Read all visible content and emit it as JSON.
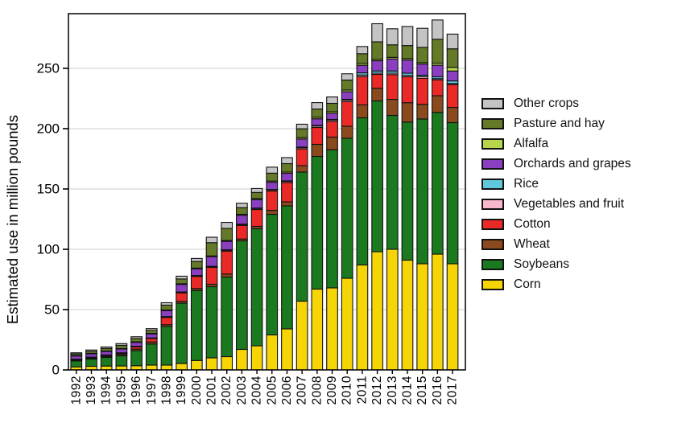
{
  "chart_data": {
    "type": "bar",
    "stacked": true,
    "title": "",
    "xlabel": "",
    "ylabel": "Estimated use in million pounds",
    "ylim": [
      0,
      295
    ],
    "yticks": [
      0,
      50,
      100,
      150,
      200,
      250
    ],
    "grid": true,
    "grid_color": "#d7d7d7",
    "legend_position": "right",
    "legend_order_top_to_bottom": [
      "Other crops",
      "Pasture and hay",
      "Alfalfa",
      "Orchards and grapes",
      "Rice",
      "Vegetables and fruit",
      "Cotton",
      "Wheat",
      "Soybeans",
      "Corn"
    ],
    "categories": [
      "1992",
      "1993",
      "1994",
      "1995",
      "1996",
      "1997",
      "1998",
      "1999",
      "2000",
      "2001",
      "2002",
      "2003",
      "2004",
      "2005",
      "2006",
      "2007",
      "2008",
      "2009",
      "2010",
      "2011",
      "2012",
      "2013",
      "2014",
      "2015",
      "2016",
      "2017"
    ],
    "series": [
      {
        "name": "Corn",
        "color": "#f5d506",
        "values": [
          2.5,
          3,
          3.2,
          3.3,
          3.5,
          4,
          4,
          5.3,
          7.8,
          10,
          11,
          17,
          20,
          29,
          34,
          57,
          67,
          68,
          76,
          87,
          98,
          100,
          91,
          88,
          96,
          88
        ]
      },
      {
        "name": "Soybeans",
        "color": "#1b7a1f",
        "values": [
          5,
          6,
          7.2,
          8.5,
          12.5,
          17.5,
          32,
          50,
          58,
          59,
          66,
          90,
          97,
          100,
          102,
          107,
          110,
          114.5,
          116,
          122,
          125,
          111,
          114.5,
          120,
          117.5,
          117
        ]
      },
      {
        "name": "Wheat",
        "color": "#8a4a1e",
        "values": [
          0.6,
          0.7,
          0.8,
          1,
          1.3,
          1.7,
          1.5,
          1.6,
          1.7,
          2,
          2.5,
          1.5,
          2,
          3.3,
          3.3,
          5.3,
          10,
          10.5,
          10,
          10.7,
          10.5,
          13.3,
          16,
          12.2,
          13.8,
          12.6
        ]
      },
      {
        "name": "Cotton",
        "color": "#eb2a27",
        "values": [
          0.5,
          0.6,
          0.8,
          1,
          1.8,
          2.8,
          6,
          7,
          10,
          14,
          19,
          11.3,
          14,
          16,
          16,
          14,
          14,
          13,
          20.5,
          23.5,
          11.5,
          20.5,
          21.5,
          21.5,
          13.2,
          19
        ]
      },
      {
        "name": "Vegetables and fruit",
        "color": "#f8b7cb",
        "values": [
          0.2,
          0.2,
          0.3,
          0.3,
          0.4,
          0.4,
          0.5,
          0.5,
          0.5,
          0.6,
          0.8,
          0.8,
          0.9,
          1,
          1,
          1,
          1.2,
          1.2,
          1.2,
          1.3,
          1,
          1.2,
          1.2,
          1.5,
          1,
          0.8
        ]
      },
      {
        "name": "Rice",
        "color": "#5fc8dd",
        "values": [
          0.1,
          0.1,
          0.1,
          0.1,
          0.1,
          0.1,
          0.2,
          0.2,
          0.3,
          0.3,
          0.3,
          0.3,
          0.3,
          0.3,
          0.4,
          0.4,
          0.5,
          0.5,
          0.6,
          1.8,
          1.8,
          1.8,
          1.8,
          1.1,
          1.5,
          2.2
        ]
      },
      {
        "name": "Orchards and grapes",
        "color": "#8a3fc1",
        "values": [
          2.8,
          2.9,
          3,
          3.2,
          3.3,
          3.4,
          5,
          6.3,
          5.5,
          8,
          7,
          7.3,
          7,
          6,
          6.3,
          6.7,
          5.5,
          5,
          6.3,
          6.3,
          8.5,
          10,
          10.9,
          9.3,
          9.6,
          8.2
        ]
      },
      {
        "name": "Alfalfa",
        "color": "#b5d54a",
        "values": [
          0.2,
          0.2,
          0.3,
          0.3,
          0.4,
          0.4,
          0.5,
          0.5,
          0.6,
          0.6,
          0.7,
          0.8,
          0.9,
          1,
          1,
          1.2,
          1.3,
          1.3,
          1.4,
          1.5,
          1.2,
          1.3,
          1.3,
          1.2,
          1.7,
          3
        ]
      },
      {
        "name": "Pasture and hay",
        "color": "#647a28",
        "values": [
          1.4,
          1.7,
          2.1,
          2.7,
          2.7,
          2.4,
          4,
          4,
          5.5,
          11,
          10,
          5.5,
          5,
          6.5,
          7,
          7.3,
          6.8,
          7,
          8.3,
          8,
          14.5,
          10.4,
          10.7,
          12.6,
          19.8,
          15.4
        ]
      },
      {
        "name": "Other crops",
        "color": "#c4c4c4",
        "values": [
          0.9,
          1.1,
          1.2,
          1.4,
          1.5,
          1.5,
          2,
          2.3,
          2.5,
          4.5,
          5,
          3.7,
          3.3,
          5,
          5,
          3.8,
          5.3,
          5.3,
          5.2,
          6,
          15,
          13.3,
          15.8,
          15.8,
          16,
          12.2
        ]
      }
    ]
  }
}
